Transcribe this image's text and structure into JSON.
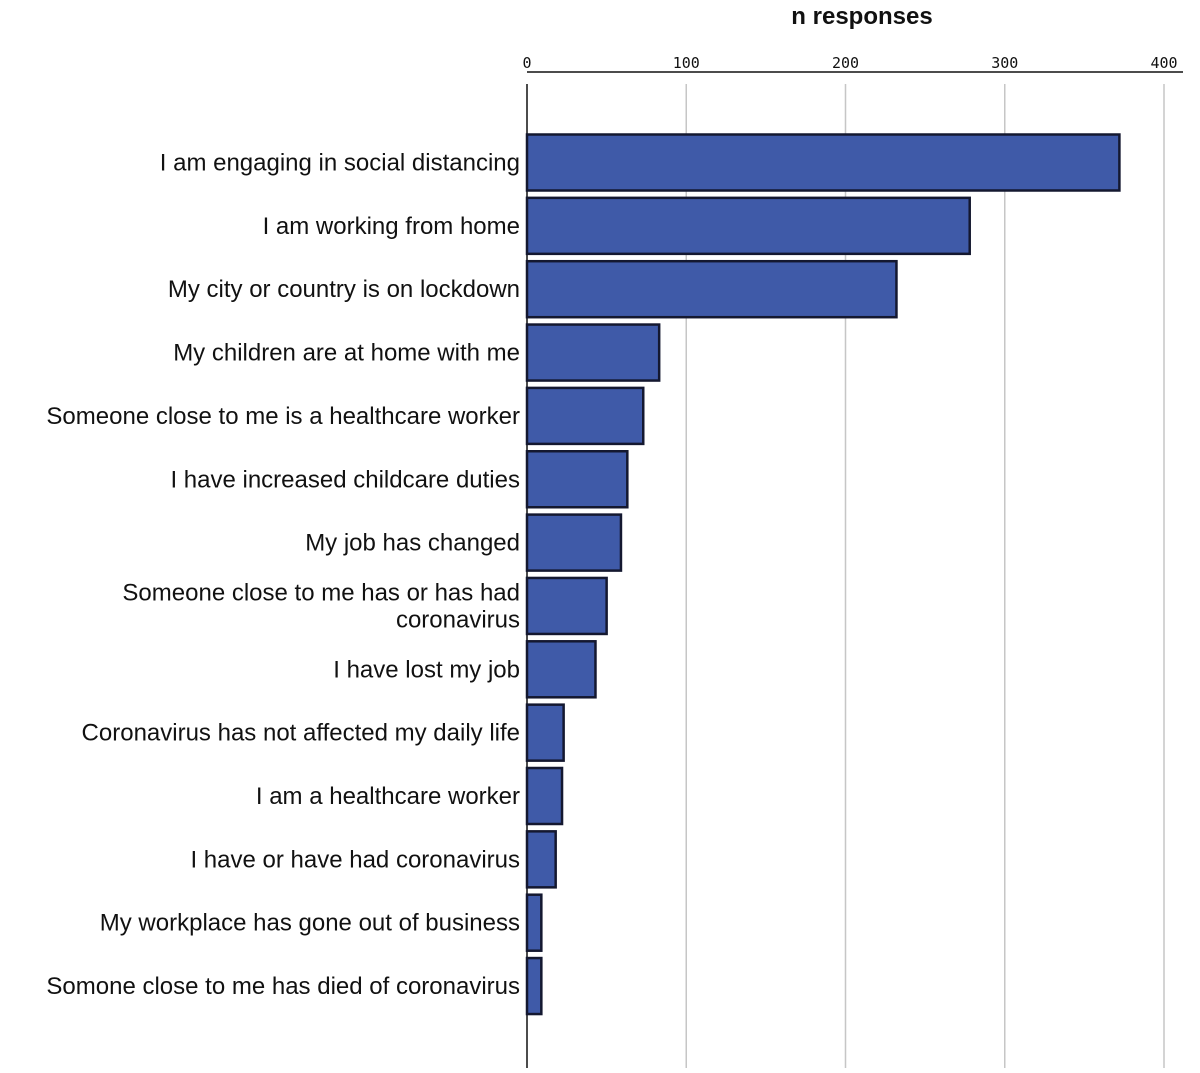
{
  "colors": {
    "bar": "#3f5aa8"
  },
  "chart_data": {
    "type": "bar",
    "orientation": "horizontal",
    "title": "",
    "xlabel": "n responses",
    "ylabel": "",
    "xlim": [
      0,
      410
    ],
    "xticks": [
      0,
      100,
      200,
      300,
      400
    ],
    "grid": true,
    "categories": [
      [
        "I am engaging in social distancing"
      ],
      [
        "I am working from home"
      ],
      [
        "My city or country is on lockdown"
      ],
      [
        "My children are at home with me"
      ],
      [
        "Someone close to me is a healthcare worker"
      ],
      [
        "I have increased childcare duties"
      ],
      [
        "My job has changed"
      ],
      [
        "Someone close to me has or has had",
        "coronavirus"
      ],
      [
        "I have lost my job"
      ],
      [
        "Coronavirus has not affected my daily life"
      ],
      [
        "I am a healthcare worker"
      ],
      [
        "I have or have had coronavirus"
      ],
      [
        "My workplace has gone out of business"
      ],
      [
        "Somone close to me has died of coronavirus"
      ]
    ],
    "values": [
      372,
      278,
      232,
      83,
      73,
      63,
      59,
      50,
      43,
      23,
      22,
      18,
      9,
      9
    ]
  }
}
